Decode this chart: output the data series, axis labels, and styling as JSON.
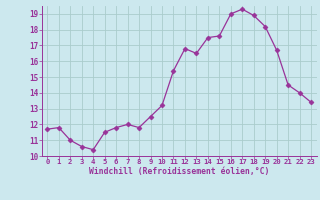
{
  "x": [
    0,
    1,
    2,
    3,
    4,
    5,
    6,
    7,
    8,
    9,
    10,
    11,
    12,
    13,
    14,
    15,
    16,
    17,
    18,
    19,
    20,
    21,
    22,
    23
  ],
  "y": [
    11.7,
    11.8,
    11.0,
    10.6,
    10.4,
    11.5,
    11.8,
    12.0,
    11.8,
    12.5,
    13.2,
    15.4,
    16.8,
    16.5,
    17.5,
    17.6,
    19.0,
    19.3,
    18.9,
    18.2,
    16.7,
    14.5,
    14.0,
    13.4
  ],
  "line_color": "#993399",
  "marker": "D",
  "marker_size": 2.5,
  "bg_color": "#cce8ee",
  "grid_color": "#aacccc",
  "xlabel": "Windchill (Refroidissement éolien,°C)",
  "xlabel_color": "#993399",
  "tick_color": "#993399",
  "axis_color": "#993399",
  "ylim": [
    10,
    19.5
  ],
  "xlim": [
    -0.5,
    23.5
  ],
  "yticks": [
    10,
    11,
    12,
    13,
    14,
    15,
    16,
    17,
    18,
    19
  ],
  "xticks": [
    0,
    1,
    2,
    3,
    4,
    5,
    6,
    7,
    8,
    9,
    10,
    11,
    12,
    13,
    14,
    15,
    16,
    17,
    18,
    19,
    20,
    21,
    22,
    23
  ],
  "xtick_fontsize": 5.2,
  "ytick_fontsize": 5.5,
  "xlabel_fontsize": 5.8
}
